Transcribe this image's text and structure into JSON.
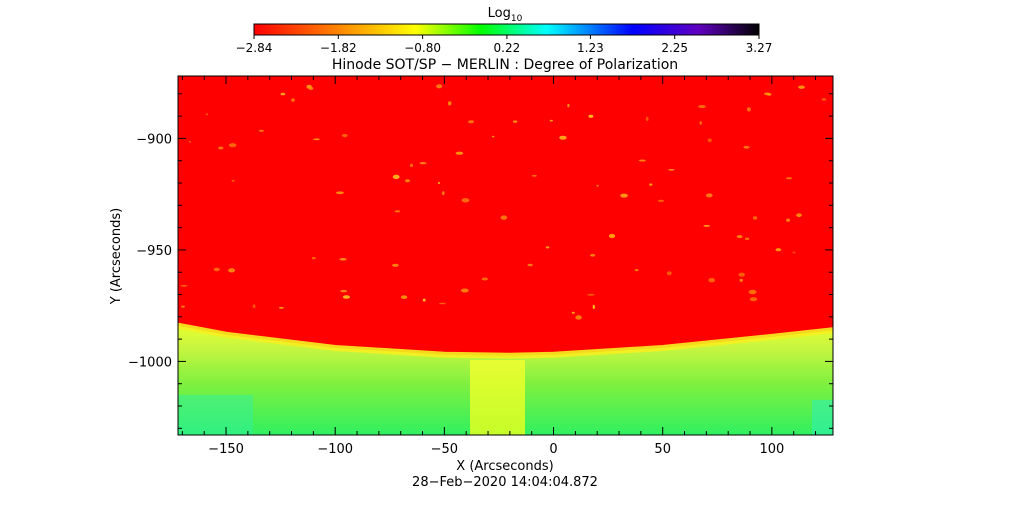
{
  "chart_data": {
    "type": "heatmap",
    "title": "Hinode SOT/SP − MERLIN : Degree of Polarization",
    "xlabel": "X (Arcseconds)",
    "ylabel": "Y (Arcseconds)",
    "timestamp": "28−Feb−2020 14:04:04.872",
    "colorbar": {
      "label_base": "Log",
      "label_sub": "10",
      "range": [
        -2.84,
        3.27
      ],
      "tick_labels": [
        "−2.84",
        "−1.82",
        "−0.80",
        "0.22",
        "1.23",
        "2.25",
        "3.27"
      ],
      "tick_values": [
        -2.84,
        -1.82,
        -0.8,
        0.22,
        1.23,
        2.25,
        3.27
      ],
      "colors": [
        "#ff0000",
        "#ff8000",
        "#ffff00",
        "#00ff00",
        "#00ffff",
        "#0000ff",
        "#8000ff",
        "#000000"
      ]
    },
    "xlim": [
      -172,
      128
    ],
    "ylim": [
      -1033,
      -872
    ],
    "x_ticks": [
      -150,
      -100,
      -50,
      0,
      50,
      100
    ],
    "x_tick_labels": [
      "−150",
      "−100",
      "−50",
      "0",
      "50",
      "100"
    ],
    "y_ticks": [
      -900,
      -950,
      -1000
    ],
    "y_tick_labels": [
      "−900",
      "−950",
      "−1000"
    ],
    "limb_edge": {
      "description": "solar limb boundary between red disk (low) and yellow-green off-limb (high)",
      "x": [
        -172,
        -150,
        -100,
        -50,
        -20,
        0,
        50,
        100,
        128
      ],
      "y": [
        -984,
        -988,
        -994,
        -997,
        -997.5,
        -997,
        -994,
        -989,
        -986
      ]
    },
    "regions": [
      {
        "name": "disk",
        "log_value": -2.84
      },
      {
        "name": "limb_band",
        "log_value": -0.8
      },
      {
        "name": "off_limb",
        "log_value": 0.0
      }
    ]
  }
}
